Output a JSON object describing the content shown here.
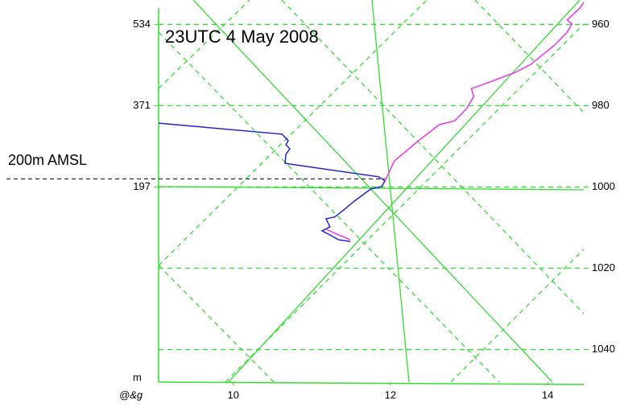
{
  "chart_data": {
    "type": "line",
    "title": "23UTC 4 May 2008",
    "x_unit_label": "@&g",
    "height_unit_label": "m",
    "annotation": {
      "text": "200m AMSL",
      "value": 998
    },
    "xlim": [
      9.05,
      14.46
    ],
    "xticks": [
      10,
      12,
      14
    ],
    "ylim": [
      1048,
      954
    ],
    "yticks": [
      960,
      980,
      1000,
      1020,
      1040
    ],
    "height_ticks": [
      {
        "value": 960,
        "label": "534"
      },
      {
        "value": 980,
        "label": "371"
      },
      {
        "value": 1000,
        "label": "197"
      }
    ],
    "grid": true,
    "grid_color": "#33dd33",
    "series": [
      {
        "color": "#2222cc",
        "x": [
          9.05,
          10.62,
          10.7,
          10.67,
          10.72,
          10.67,
          10.66,
          11.85,
          11.93,
          11.89,
          11.75,
          11.54,
          11.39,
          11.29,
          11.18,
          11.23,
          11.13,
          11.23,
          11.34,
          11.49
        ],
        "values": [
          984.3,
          987.0,
          988.6,
          989.6,
          990.6,
          992.0,
          994.2,
          997.5,
          998.5,
          999.9,
          1000.5,
          1003.5,
          1005.9,
          1007.4,
          1007.8,
          1009.8,
          1010.8,
          1011.8,
          1013.0,
          1013.4
        ]
      },
      {
        "color": "#ee33ee",
        "x": [
          11.93,
          12.05,
          12.36,
          12.62,
          12.82,
          12.97,
          13.06,
          13.03,
          13.18,
          13.59,
          13.79,
          14.1,
          14.25,
          14.31,
          14.25,
          14.41,
          14.46,
          null,
          11.18,
          11.34,
          11.49
        ],
        "values": [
          998.5,
          993.6,
          988.6,
          984.7,
          983.7,
          980.7,
          977.7,
          975.8,
          974.8,
          971.8,
          969.8,
          964.9,
          961.9,
          959.9,
          958.9,
          956.0,
          954.6,
          null,
          1010.4,
          1011.8,
          1013.0
        ]
      }
    ]
  }
}
